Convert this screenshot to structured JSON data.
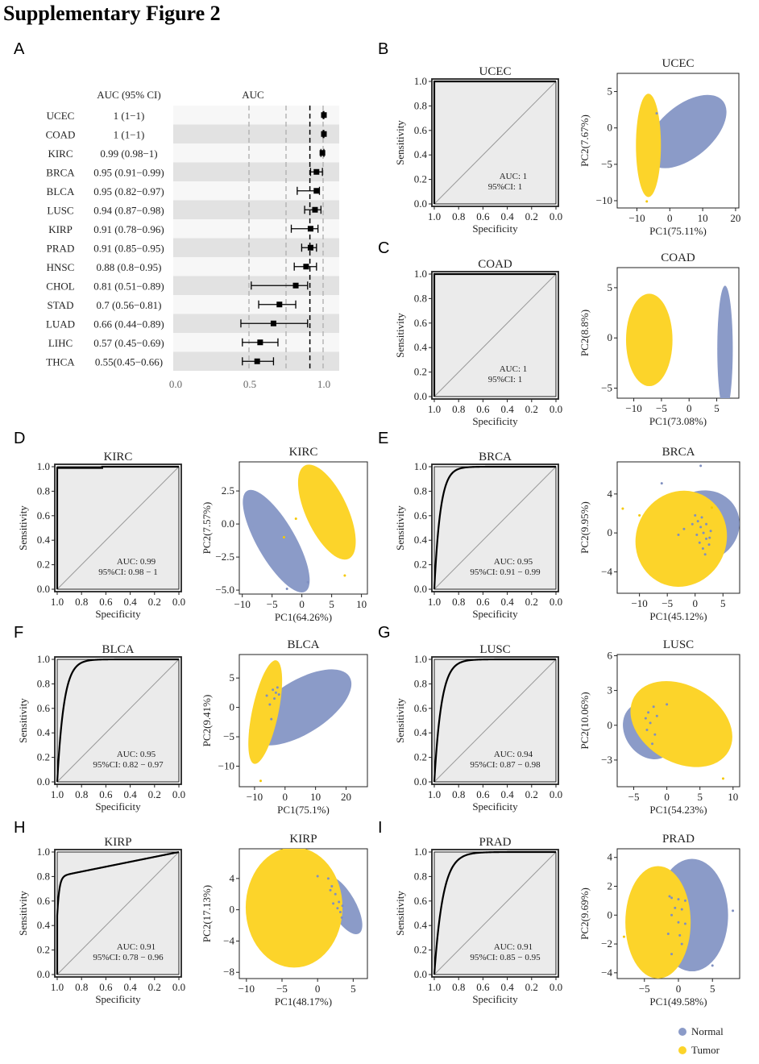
{
  "figure_title": "Supplementary Figure 2",
  "panel_labels": [
    "A",
    "B",
    "C",
    "D",
    "E",
    "F",
    "G",
    "H",
    "I"
  ],
  "colors": {
    "normal": "#8b9bc8",
    "tumor": "#fcd42a",
    "panel_bg": "#ebebeb",
    "band": "#e2e2e2"
  },
  "legend": {
    "normal_label": "Normal",
    "tumor_label": "Tumor"
  },
  "chart_data": [
    {
      "type": "forest",
      "col_header_ci": "AUC (95% CI)",
      "col_header_plot": "AUC",
      "x_ticks": [
        "0.0",
        "0.5",
        "1.0"
      ],
      "xlim": [
        0,
        1
      ],
      "dashed_refs": [
        0.25,
        0.5,
        0.75
      ],
      "threshold": 0.9,
      "rows": [
        {
          "label": "UCEC",
          "ci_text": "1 (1−1)",
          "auc": 1.0,
          "lo": 0.995,
          "hi": 1.0
        },
        {
          "label": "COAD",
          "ci_text": "1 (1−1)",
          "auc": 1.0,
          "lo": 0.995,
          "hi": 1.0
        },
        {
          "label": "KIRC",
          "ci_text": "0.99 (0.98−1)",
          "auc": 0.99,
          "lo": 0.98,
          "hi": 1.0
        },
        {
          "label": "BRCA",
          "ci_text": "0.95 (0.91−0.99)",
          "auc": 0.95,
          "lo": 0.91,
          "hi": 0.99
        },
        {
          "label": "BLCA",
          "ci_text": "0.95 (0.82−0.97)",
          "auc": 0.95,
          "lo": 0.82,
          "hi": 0.97
        },
        {
          "label": "LUSC",
          "ci_text": "0.94 (0.87−0.98)",
          "auc": 0.94,
          "lo": 0.87,
          "hi": 0.98
        },
        {
          "label": "KIRP",
          "ci_text": "0.91 (0.78−0.96)",
          "auc": 0.91,
          "lo": 0.78,
          "hi": 0.96
        },
        {
          "label": "PRAD",
          "ci_text": "0.91 (0.85−0.95)",
          "auc": 0.91,
          "lo": 0.85,
          "hi": 0.95
        },
        {
          "label": "HNSC",
          "ci_text": "0.88 (0.8−0.95)",
          "auc": 0.88,
          "lo": 0.8,
          "hi": 0.95
        },
        {
          "label": "CHOL",
          "ci_text": "0.81 (0.51−0.89)",
          "auc": 0.81,
          "lo": 0.51,
          "hi": 0.89
        },
        {
          "label": "STAD",
          "ci_text": "0.7 (0.56−0.81)",
          "auc": 0.7,
          "lo": 0.56,
          "hi": 0.81
        },
        {
          "label": "LUAD",
          "ci_text": "0.66 (0.44−0.89)",
          "auc": 0.66,
          "lo": 0.44,
          "hi": 0.89
        },
        {
          "label": "LIHC",
          "ci_text": "0.57 (0.45−0.69)",
          "auc": 0.57,
          "lo": 0.45,
          "hi": 0.69
        },
        {
          "label": "THCA",
          "ci_text": "0.55(0.45−0.66)",
          "auc": 0.55,
          "lo": 0.45,
          "hi": 0.66
        }
      ]
    },
    {
      "type": "roc",
      "title": "UCEC",
      "auc": 1,
      "auc_text": "AUC: 1",
      "ci_text": "95%CI: 1",
      "curve": "perfect",
      "xlabel": "Specificity",
      "ylabel": "Sensitivity",
      "x_ticks": [
        "1.0",
        "0.8",
        "0.6",
        "0.4",
        "0.2",
        "0.0"
      ],
      "y_ticks": [
        "0.0",
        "0.2",
        "0.4",
        "0.6",
        "0.8",
        "1.0"
      ]
    },
    {
      "type": "scatter",
      "title": "UCEC",
      "xlabel": "PC1(75.11%)",
      "ylabel": "PC2(7.67%)",
      "xlim": [
        -16,
        21
      ],
      "ylim": [
        -11,
        7.5
      ],
      "x_ticks": [
        -10,
        0,
        10,
        20
      ],
      "y_ticks": [
        -10,
        -5,
        0,
        5
      ],
      "ellipses": [
        {
          "group": "normal",
          "cx": 5,
          "cy": -0.5,
          "rx": 14.5,
          "ry": 3.6,
          "angle": -40
        },
        {
          "group": "tumor",
          "cx": -6.5,
          "cy": -2.4,
          "rx": 3.8,
          "ry": 7.1,
          "angle": 0
        }
      ],
      "points": [
        [
          -7,
          -10.1,
          "tumor"
        ],
        [
          -4,
          2,
          "normal"
        ]
      ]
    },
    {
      "type": "roc",
      "title": "COAD",
      "auc": 1,
      "auc_text": "AUC: 1",
      "ci_text": "95%CI: 1",
      "curve": "perfect",
      "xlabel": "Specificity",
      "ylabel": "Sensitivity",
      "x_ticks": [
        "1.0",
        "0.8",
        "0.6",
        "0.4",
        "0.2",
        "0.0"
      ],
      "y_ticks": [
        "0.0",
        "0.2",
        "0.4",
        "0.6",
        "0.8",
        "1.0"
      ]
    },
    {
      "type": "scatter",
      "title": "COAD",
      "xlabel": "PC1(73.08%)",
      "ylabel": "PC2(8.8%)",
      "xlim": [
        -13,
        9
      ],
      "ylim": [
        -6,
        7
      ],
      "x_ticks": [
        -10,
        -5,
        0,
        5
      ],
      "y_ticks": [
        -5,
        0,
        5
      ],
      "ellipses": [
        {
          "group": "tumor",
          "cx": -7.2,
          "cy": -0.2,
          "rx": 4.2,
          "ry": 4.6,
          "angle": 0
        },
        {
          "group": "normal",
          "cx": 6.5,
          "cy": -1.1,
          "rx": 1.4,
          "ry": 6.3,
          "angle": 0
        }
      ],
      "points": []
    },
    {
      "type": "roc",
      "title": "KIRC",
      "auc": 0.99,
      "auc_text": "AUC: 0.99",
      "ci_text": "95%CI: 0.98 − 1",
      "curve": "step",
      "xlabel": "Specificity",
      "ylabel": "Sensitivity",
      "x_ticks": [
        "1.0",
        "0.8",
        "0.6",
        "0.4",
        "0.2",
        "0.0"
      ],
      "y_ticks": [
        "0.0",
        "0.2",
        "0.4",
        "0.6",
        "0.8",
        "1.0"
      ]
    },
    {
      "type": "scatter",
      "title": "KIRC",
      "xlabel": "PC1(64.26%)",
      "ylabel": "PC2(7.57%)",
      "xlim": [
        -10.5,
        11
      ],
      "ylim": [
        -5.3,
        4.7
      ],
      "x_ticks": [
        -10,
        -5,
        0,
        5,
        10
      ],
      "y_ticks": [
        -5.0,
        -2.5,
        0.0,
        2.5
      ],
      "ellipses": [
        {
          "group": "normal",
          "cx": -4.3,
          "cy": -1.3,
          "rx": 3.2,
          "ry": 4.4,
          "angle": -30
        },
        {
          "group": "tumor",
          "cx": 4.2,
          "cy": 0.9,
          "rx": 3.5,
          "ry": 3.9,
          "angle": -25
        },
        {
          "group": "normal",
          "cx": -8.2,
          "cy": 0.0,
          "rx": 0.4,
          "ry": 0.2,
          "angle": 0
        }
      ],
      "points": [
        [
          -2.5,
          -4.9,
          "normal"
        ],
        [
          1,
          -4.4,
          "normal"
        ],
        [
          7.2,
          -3.9,
          "tumor"
        ],
        [
          -3,
          -1,
          "tumor"
        ],
        [
          -1,
          0.4,
          "tumor"
        ]
      ]
    },
    {
      "type": "roc",
      "title": "BRCA",
      "auc": 0.95,
      "auc_text": "AUC: 0.95",
      "ci_text": "95%CI: 0.91 − 0.99",
      "curve": "smooth",
      "k": 20,
      "xlabel": "Specificity",
      "ylabel": "Sensitivity",
      "x_ticks": [
        "1.0",
        "0.8",
        "0.6",
        "0.4",
        "0.2",
        "0.0"
      ],
      "y_ticks": [
        "0.0",
        "0.2",
        "0.4",
        "0.6",
        "0.8",
        "1.0"
      ]
    },
    {
      "type": "scatter",
      "title": "BRCA",
      "xlabel": "PC1(45.12%)",
      "ylabel": "PC2(9.95%)",
      "xlim": [
        -14,
        8
      ],
      "ylim": [
        -6.2,
        7.3
      ],
      "x_ticks": [
        -10,
        -5,
        0,
        5
      ],
      "y_ticks": [
        -4,
        0,
        4
      ],
      "ellipses": [
        {
          "group": "normal",
          "cx": 1.3,
          "cy": 0.7,
          "rx": 6.8,
          "ry": 3.6,
          "angle": -30
        },
        {
          "group": "tumor",
          "cx": -2.5,
          "cy": -0.6,
          "rx": 8.1,
          "ry": 5.0,
          "angle": 25
        }
      ],
      "points": [
        [
          1,
          6.9,
          "normal"
        ],
        [
          -6,
          5.1,
          "normal"
        ],
        [
          -13,
          2.5,
          "tumor"
        ],
        [
          -10,
          1.8,
          "tumor"
        ],
        [
          3,
          2.6,
          "tumor"
        ],
        [
          -2,
          0.4,
          "normal"
        ],
        [
          -3,
          -0.2,
          "normal"
        ],
        [
          0,
          1.8,
          "normal"
        ],
        [
          0.5,
          1.2,
          "normal"
        ],
        [
          1,
          0.6,
          "normal"
        ],
        [
          1.5,
          0.0,
          "normal"
        ],
        [
          2,
          -0.6,
          "normal"
        ],
        [
          2.5,
          -1.2,
          "normal"
        ],
        [
          0.3,
          -0.2,
          "normal"
        ],
        [
          0.8,
          -1.0,
          "normal"
        ],
        [
          1.4,
          -1.6,
          "normal"
        ],
        [
          2,
          0.9,
          "normal"
        ],
        [
          2.8,
          0.2,
          "normal"
        ],
        [
          -0.5,
          0.9,
          "normal"
        ],
        [
          1.2,
          1.6,
          "normal"
        ],
        [
          1.8,
          -2.2,
          "normal"
        ],
        [
          2.6,
          -0.5,
          "normal"
        ]
      ]
    },
    {
      "type": "roc",
      "title": "BLCA",
      "auc": 0.95,
      "auc_text": "AUC: 0.95",
      "ci_text": "95%CI: 0.82 − 0.97",
      "curve": "smooth",
      "k": 18,
      "xlabel": "Specificity",
      "ylabel": "Sensitivity",
      "x_ticks": [
        "1.0",
        "0.8",
        "0.6",
        "0.4",
        "0.2",
        "0.0"
      ],
      "y_ticks": [
        "0.0",
        "0.2",
        "0.4",
        "0.6",
        "0.8",
        "1.0"
      ]
    },
    {
      "type": "scatter",
      "title": "BLCA",
      "xlabel": "PC1(75.1%)",
      "ylabel": "PC2(9.41%)",
      "xlim": [
        -15,
        27
      ],
      "ylim": [
        -13.5,
        9
      ],
      "x_ticks": [
        -10,
        0,
        10,
        20
      ],
      "y_ticks": [
        -10,
        -5,
        0,
        5
      ],
      "ellipses": [
        {
          "group": "normal",
          "cx": 5,
          "cy": 0,
          "rx": 19,
          "ry": 4.5,
          "angle": -32
        },
        {
          "group": "tumor",
          "cx": -6.5,
          "cy": -0.8,
          "rx": 4.3,
          "ry": 9.0,
          "angle": 12
        }
      ],
      "points": [
        [
          -8,
          -12.5,
          "tumor"
        ],
        [
          -4,
          3,
          "normal"
        ],
        [
          -3,
          2.5,
          "normal"
        ],
        [
          -2,
          2.2,
          "normal"
        ],
        [
          -3.5,
          1.5,
          "normal"
        ],
        [
          -5,
          0.5,
          "normal"
        ],
        [
          -2.5,
          3.4,
          "normal"
        ],
        [
          -4.5,
          -2,
          "normal"
        ],
        [
          -6,
          2,
          "normal"
        ]
      ]
    },
    {
      "type": "roc",
      "title": "LUSC",
      "auc": 0.94,
      "auc_text": "AUC: 0.94",
      "ci_text": "95%CI: 0.87 − 0.98",
      "curve": "smooth",
      "k": 17,
      "xlabel": "Specificity",
      "ylabel": "Sensitivity",
      "x_ticks": [
        "1.0",
        "0.8",
        "0.6",
        "0.4",
        "0.2",
        "0.0"
      ],
      "y_ticks": [
        "0.0",
        "0.2",
        "0.4",
        "0.6",
        "0.8",
        "1.0"
      ]
    },
    {
      "type": "scatter",
      "title": "LUSC",
      "xlabel": "PC1(54.23%)",
      "ylabel": "PC2(10.06%)",
      "xlim": [
        -7.5,
        11
      ],
      "ylim": [
        -5.3,
        6.1
      ],
      "x_ticks": [
        -5,
        0,
        5,
        10
      ],
      "y_ticks": [
        -3,
        0,
        3,
        6
      ],
      "ellipses": [
        {
          "group": "normal",
          "cx": -2.7,
          "cy": -0.5,
          "rx": 3.6,
          "ry": 2.6,
          "angle": -35
        },
        {
          "group": "tumor",
          "cx": 2.2,
          "cy": 0.1,
          "rx": 5.8,
          "ry": 4.7,
          "angle": -60
        }
      ],
      "points": [
        [
          8.5,
          -4.6,
          "tumor"
        ],
        [
          -2,
          1.6,
          "normal"
        ],
        [
          -1.5,
          0.8,
          "normal"
        ],
        [
          -2.5,
          0.2,
          "normal"
        ],
        [
          -3,
          -0.4,
          "normal"
        ],
        [
          -1.8,
          -0.8,
          "normal"
        ],
        [
          -2.8,
          1.1,
          "normal"
        ],
        [
          0,
          1.8,
          "normal"
        ],
        [
          -2.2,
          -1.6,
          "normal"
        ],
        [
          -3.2,
          0.6,
          "normal"
        ]
      ]
    },
    {
      "type": "roc",
      "title": "KIRP",
      "auc": 0.91,
      "auc_text": "AUC: 0.91",
      "ci_text": "95%CI: 0.78 − 0.96",
      "curve": "kirp",
      "xlabel": "Specificity",
      "ylabel": "Sensitivity",
      "x_ticks": [
        "1.0",
        "0.8",
        "0.6",
        "0.4",
        "0.2",
        "0.0"
      ],
      "y_ticks": [
        "0.0",
        "0.2",
        "0.4",
        "0.6",
        "0.8",
        "1.0"
      ]
    },
    {
      "type": "scatter",
      "title": "KIRP",
      "xlabel": "PC1(48.17%)",
      "ylabel": "PC2(17.13%)",
      "xlim": [
        -11,
        7
      ],
      "ylim": [
        -8.8,
        7.8
      ],
      "x_ticks": [
        -10,
        -5,
        0,
        5
      ],
      "y_ticks": [
        -8,
        -4,
        0,
        4
      ],
      "ellipses": [
        {
          "group": "normal",
          "cx": 3.5,
          "cy": 0.6,
          "rx": 1.8,
          "ry": 4.2,
          "angle": -30
        },
        {
          "group": "tumor",
          "cx": -3.3,
          "cy": 0.3,
          "rx": 6.8,
          "ry": 7.7,
          "angle": 0
        }
      ],
      "points": [
        [
          0,
          4.3,
          "normal"
        ],
        [
          1.5,
          4.0,
          "normal"
        ],
        [
          2,
          3.0,
          "normal"
        ],
        [
          2.5,
          2.0,
          "normal"
        ],
        [
          3,
          1.0,
          "normal"
        ],
        [
          2.8,
          0.2,
          "normal"
        ],
        [
          3.2,
          -0.3,
          "normal"
        ],
        [
          3.5,
          0.5,
          "normal"
        ],
        [
          2.2,
          0.8,
          "normal"
        ],
        [
          3.4,
          -1.0,
          "normal"
        ],
        [
          1.8,
          2.5,
          "normal"
        ]
      ]
    },
    {
      "type": "roc",
      "title": "PRAD",
      "auc": 0.91,
      "auc_text": "AUC: 0.91",
      "ci_text": "95%CI: 0.85 − 0.95",
      "curve": "smooth",
      "k": 14,
      "xlabel": "Specificity",
      "ylabel": "Sensitivity",
      "x_ticks": [
        "1.0",
        "0.8",
        "0.6",
        "0.4",
        "0.2",
        "0.0"
      ],
      "y_ticks": [
        "0.0",
        "0.2",
        "0.4",
        "0.6",
        "0.8",
        "1.0"
      ]
    },
    {
      "type": "scatter",
      "title": "PRAD",
      "xlabel": "PC1(49.58%)",
      "ylabel": "PC2(9.69%)",
      "xlim": [
        -9,
        9
      ],
      "ylim": [
        -4.4,
        4.6
      ],
      "x_ticks": [
        -5,
        0,
        5
      ],
      "y_ticks": [
        -4,
        -2,
        0,
        2,
        4
      ],
      "ellipses": [
        {
          "group": "normal",
          "cx": 2,
          "cy": 0,
          "rx": 5.3,
          "ry": 3.9,
          "angle": 0
        },
        {
          "group": "tumor",
          "cx": -3,
          "cy": -0.5,
          "rx": 4.8,
          "ry": 3.9,
          "angle": 0
        }
      ],
      "points": [
        [
          8,
          0.3,
          "normal"
        ],
        [
          5,
          -3.5,
          "normal"
        ],
        [
          -8,
          -1.5,
          "tumor"
        ],
        [
          -1,
          1.2,
          "normal"
        ],
        [
          0,
          1.1,
          "normal"
        ],
        [
          1,
          1.0,
          "normal"
        ],
        [
          -0.5,
          0.5,
          "normal"
        ],
        [
          0.5,
          0.4,
          "normal"
        ],
        [
          -1,
          0.0,
          "normal"
        ],
        [
          0,
          -0.5,
          "normal"
        ],
        [
          1,
          -0.6,
          "normal"
        ],
        [
          -1.5,
          -1.3,
          "normal"
        ],
        [
          0.5,
          -2.0,
          "normal"
        ],
        [
          -1,
          -2.7,
          "normal"
        ],
        [
          -1.3,
          1.3,
          "normal"
        ],
        [
          0.2,
          -1.4,
          "normal"
        ]
      ]
    }
  ]
}
